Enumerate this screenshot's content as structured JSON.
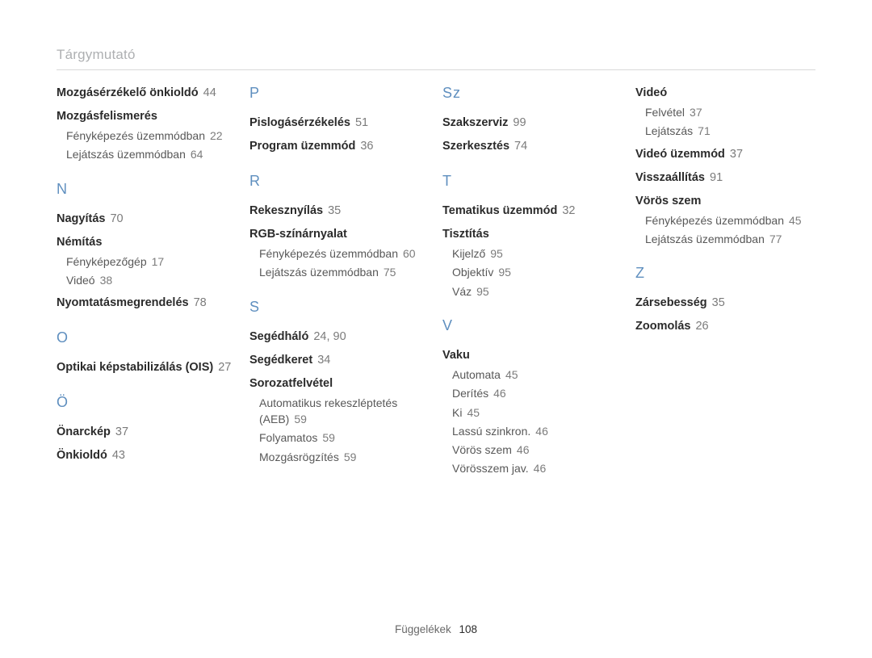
{
  "title": "Tárgymutató",
  "footer": {
    "label": "Függelékek",
    "page": "108"
  },
  "columns": [
    {
      "blocks": [
        {
          "type": "section",
          "text": "Mozgásérzékelő önkioldó",
          "page": "44",
          "first": true
        },
        {
          "type": "section",
          "text": "Mozgásfelismerés"
        },
        {
          "type": "sub",
          "text": "Fényképezés üzemmódban",
          "page": "22"
        },
        {
          "type": "sub",
          "text": "Lejátszás üzemmódban",
          "page": "64"
        },
        {
          "type": "letter",
          "text": "N"
        },
        {
          "type": "section",
          "text": "Nagyítás",
          "page": "70"
        },
        {
          "type": "section",
          "text": "Némítás"
        },
        {
          "type": "sub",
          "text": "Fényképezőgép",
          "page": "17"
        },
        {
          "type": "sub",
          "text": "Videó",
          "page": "38"
        },
        {
          "type": "section",
          "text": "Nyomtatásmegrendelés",
          "page": "78"
        },
        {
          "type": "letter",
          "text": "O"
        },
        {
          "type": "section",
          "text": "Optikai képstabilizálás (OIS)",
          "page": "27"
        },
        {
          "type": "letter",
          "text": "Ö"
        },
        {
          "type": "section",
          "text": "Önarckép",
          "page": "37"
        },
        {
          "type": "section",
          "text": "Önkioldó",
          "page": "43"
        }
      ]
    },
    {
      "blocks": [
        {
          "type": "letter",
          "text": "P",
          "first": true
        },
        {
          "type": "section",
          "text": "Pislogásérzékelés",
          "page": "51"
        },
        {
          "type": "section",
          "text": "Program üzemmód",
          "page": "36"
        },
        {
          "type": "letter",
          "text": "R"
        },
        {
          "type": "section",
          "text": "Rekesznyílás",
          "page": "35"
        },
        {
          "type": "section",
          "text": "RGB-színárnyalat"
        },
        {
          "type": "sub",
          "text": "Fényképezés üzemmódban",
          "page": "60"
        },
        {
          "type": "sub",
          "text": "Lejátszás üzemmódban",
          "page": "75"
        },
        {
          "type": "letter",
          "text": "S"
        },
        {
          "type": "section",
          "text": "Segédháló",
          "page": "24, 90"
        },
        {
          "type": "section",
          "text": "Segédkeret",
          "page": "34"
        },
        {
          "type": "section",
          "text": "Sorozatfelvétel"
        },
        {
          "type": "sub",
          "text": "Automatikus rekeszléptetés (AEB)",
          "page": "59"
        },
        {
          "type": "sub",
          "text": "Folyamatos",
          "page": "59"
        },
        {
          "type": "sub",
          "text": "Mozgásrögzítés",
          "page": "59"
        }
      ]
    },
    {
      "blocks": [
        {
          "type": "letter",
          "text": "Sz",
          "first": true
        },
        {
          "type": "section",
          "text": "Szakszerviz",
          "page": "99"
        },
        {
          "type": "section",
          "text": "Szerkesztés",
          "page": "74"
        },
        {
          "type": "letter",
          "text": "T"
        },
        {
          "type": "section",
          "text": "Tematikus üzemmód",
          "page": "32"
        },
        {
          "type": "section",
          "text": "Tisztítás"
        },
        {
          "type": "sub",
          "text": "Kijelző",
          "page": "95"
        },
        {
          "type": "sub",
          "text": "Objektív",
          "page": "95"
        },
        {
          "type": "sub",
          "text": "Váz",
          "page": "95"
        },
        {
          "type": "letter",
          "text": "V"
        },
        {
          "type": "section",
          "text": "Vaku"
        },
        {
          "type": "sub",
          "text": "Automata",
          "page": "45"
        },
        {
          "type": "sub",
          "text": "Derítés",
          "page": "46"
        },
        {
          "type": "sub",
          "text": "Ki",
          "page": "45"
        },
        {
          "type": "sub",
          "text": "Lassú szinkron.",
          "page": "46"
        },
        {
          "type": "sub",
          "text": "Vörös szem",
          "page": "46"
        },
        {
          "type": "sub",
          "text": "Vörösszem jav.",
          "page": "46"
        }
      ]
    },
    {
      "blocks": [
        {
          "type": "section",
          "text": "Videó",
          "first": true
        },
        {
          "type": "sub",
          "text": "Felvétel",
          "page": "37"
        },
        {
          "type": "sub",
          "text": "Lejátszás",
          "page": "71"
        },
        {
          "type": "section",
          "text": "Videó üzemmód",
          "page": "37"
        },
        {
          "type": "section",
          "text": "Visszaállítás",
          "page": "91"
        },
        {
          "type": "section",
          "text": "Vörös szem"
        },
        {
          "type": "sub",
          "text": "Fényképezés üzemmódban",
          "page": "45"
        },
        {
          "type": "sub",
          "text": "Lejátszás üzemmódban",
          "page": "77"
        },
        {
          "type": "letter",
          "text": "Z"
        },
        {
          "type": "section",
          "text": "Zársebesség",
          "page": "35"
        },
        {
          "type": "section",
          "text": "Zoomolás",
          "page": "26"
        }
      ]
    }
  ]
}
